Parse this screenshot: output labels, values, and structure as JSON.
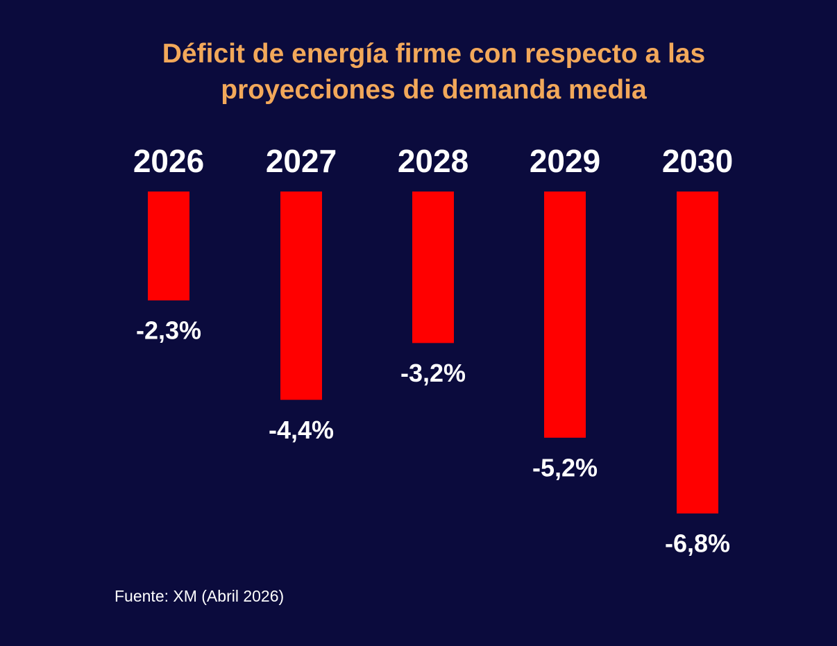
{
  "chart_data": {
    "type": "bar",
    "title": "Déficit de energía firme con respecto a las proyecciones de demanda media",
    "categories": [
      "2026",
      "2027",
      "2028",
      "2029",
      "2030"
    ],
    "values": [
      -2.3,
      -4.4,
      -3.2,
      -5.2,
      -6.8
    ],
    "value_labels": [
      "-2,3%",
      "-4,4%",
      "-3,2%",
      "-5,2%",
      "-6,8%"
    ],
    "color": "#ff0000",
    "source": "Fuente: XM (Abril 2026)"
  }
}
